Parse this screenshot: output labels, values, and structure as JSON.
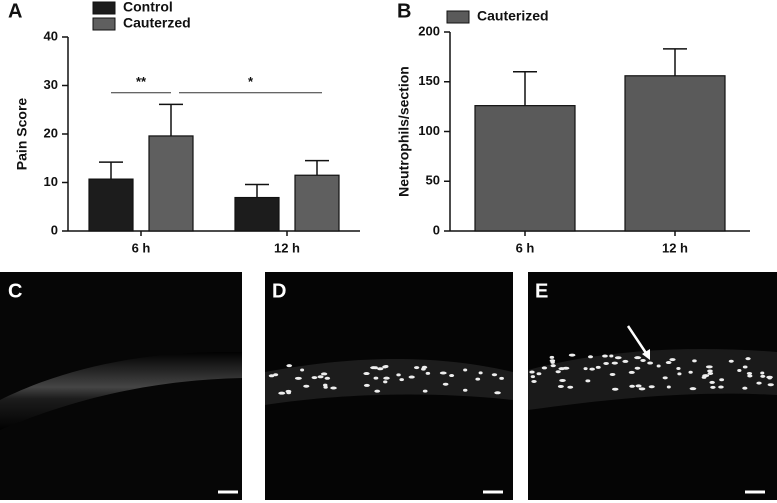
{
  "chart_data": [
    {
      "type": "bar",
      "label": "A",
      "ylabel": "Pain Score",
      "categories": [
        "6 h",
        "12 h"
      ],
      "series": [
        {
          "name": "Control",
          "color": "#1c1c1c",
          "values": [
            10.7,
            6.9
          ],
          "errors": [
            3.5,
            2.7
          ]
        },
        {
          "name": "Cauterzed",
          "color": "#5f5f5f",
          "values": [
            19.6,
            11.5
          ],
          "errors": [
            6.5,
            3.0
          ]
        }
      ],
      "ylim": [
        0,
        40
      ],
      "yticks": [
        0,
        10,
        20,
        30,
        40
      ],
      "annotations": [
        "**",
        "*"
      ]
    },
    {
      "type": "bar",
      "label": "B",
      "ylabel": "Neutrophils/section",
      "categories": [
        "6 h",
        "12 h"
      ],
      "series": [
        {
          "name": "Cauterized",
          "color": "#5a5a5a",
          "values": [
            126,
            156
          ],
          "errors": [
            34,
            27
          ]
        }
      ],
      "ylim": [
        0,
        200
      ],
      "yticks": [
        0,
        50,
        100,
        150,
        200
      ]
    }
  ],
  "images": [
    {
      "label": "C"
    },
    {
      "label": "D"
    },
    {
      "label": "E"
    }
  ]
}
